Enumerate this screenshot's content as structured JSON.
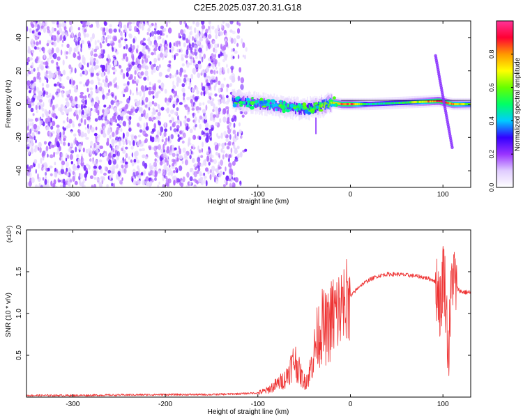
{
  "title": "C2E5.2025.037.20.31.G18",
  "chart_data": [
    {
      "type": "heatmap",
      "xlabel": "Height of straight line (km)",
      "ylabel": "Frequency (Hz)",
      "xlim": [
        -350,
        130
      ],
      "ylim": [
        -50,
        50
      ],
      "xticks": [
        -300,
        -200,
        -100,
        0,
        100
      ],
      "yticks": [
        -40,
        -20,
        0,
        20,
        40
      ],
      "colorbar": {
        "label": "Normalized spectral amplitude",
        "range": [
          0,
          1
        ],
        "ticks": [
          "0.0",
          "0.2",
          "0.4",
          "0.6",
          "0.8"
        ],
        "colors": [
          "#ffffff",
          "#e0ccff",
          "#9933ff",
          "#3300ff",
          "#00ccff",
          "#00ff66",
          "#66ff00",
          "#ffff00",
          "#ff9900",
          "#ff0033",
          "#ff3399"
        ]
      },
      "noise_region": {
        "x_range": [
          -350,
          -110
        ],
        "freq_range": [
          -50,
          50
        ],
        "amplitude": 0.1
      },
      "signal_ridge": {
        "x": [
          -128,
          -110,
          -95,
          -80,
          -65,
          -50,
          -40,
          -30,
          -20,
          -10,
          0,
          20,
          40,
          60,
          80,
          95,
          110,
          130
        ],
        "freq": [
          2,
          1,
          0,
          -1,
          -2,
          -3,
          -2,
          -1,
          1,
          0,
          0,
          0,
          0.5,
          1,
          1.5,
          2,
          0,
          0
        ],
        "amplitude": [
          0.3,
          0.35,
          0.4,
          0.4,
          0.45,
          0.5,
          0.55,
          0.6,
          0.7,
          0.85,
          0.9,
          0.45,
          0.5,
          0.55,
          0.75,
          0.9,
          0.8,
          0.6
        ]
      },
      "interference_line": {
        "x": [
          92,
          110
        ],
        "freq": [
          29,
          -26
        ]
      }
    },
    {
      "type": "line",
      "xlabel": "Height of straight line (km)",
      "ylabel": "SNR (10 * v/v)",
      "y_multiplier": "(x10⁴)",
      "xlim": [
        -350,
        130
      ],
      "ylim": [
        0,
        2.0
      ],
      "xticks": [
        -300,
        -200,
        -100,
        0,
        100
      ],
      "yticks": [
        "0.5",
        "1.0",
        "1.5",
        "2.0"
      ],
      "color": "#ee3333",
      "series": [
        {
          "x": [
            -350,
            -300,
            -250,
            -200,
            -150,
            -120,
            -100,
            -90,
            -80,
            -70,
            -65,
            -60,
            -55,
            -50,
            -45,
            -40,
            -35,
            -30,
            -25,
            -20,
            -15,
            -10,
            -5,
            0,
            10,
            20,
            30,
            40,
            50,
            60,
            70,
            80,
            90,
            95,
            98,
            100,
            103,
            106,
            110,
            115,
            120,
            130
          ],
          "y": [
            0.02,
            0.02,
            0.025,
            0.03,
            0.03,
            0.04,
            0.05,
            0.08,
            0.15,
            0.22,
            0.35,
            0.45,
            0.3,
            0.18,
            0.25,
            0.5,
            0.75,
            0.85,
            0.8,
            0.95,
            1.0,
            1.05,
            1.1,
            1.2,
            1.33,
            1.4,
            1.45,
            1.47,
            1.47,
            1.46,
            1.45,
            1.43,
            1.4,
            1.3,
            1.0,
            1.6,
            1.2,
            0.5,
            1.5,
            1.3,
            1.26,
            1.25
          ]
        }
      ]
    }
  ]
}
